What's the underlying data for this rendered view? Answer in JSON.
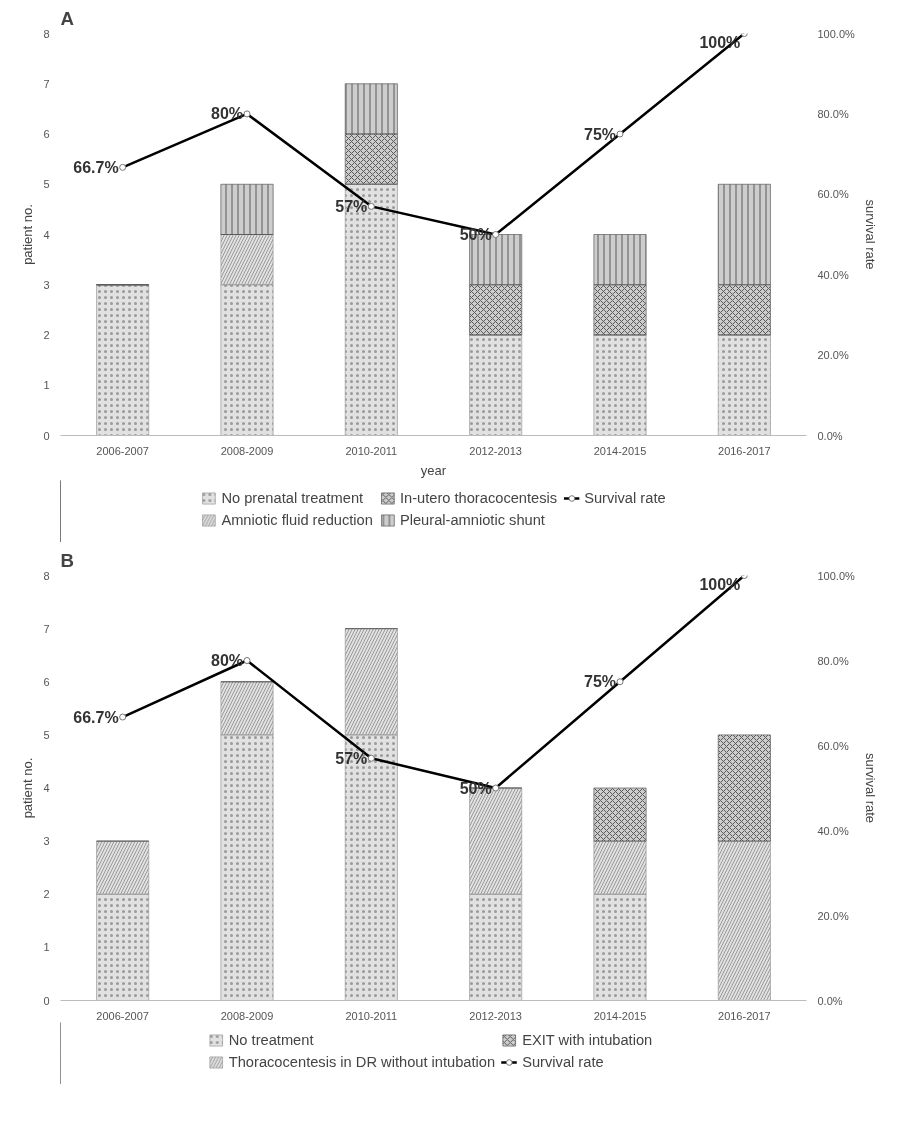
{
  "chart_data": [
    {
      "type": "bar",
      "title": "A",
      "xlabel": "year",
      "ylabel": "patient no.",
      "y2label": "survival rate",
      "stacked": true,
      "legend": "bottom",
      "marker": "circle",
      "grid": false,
      "categories": [
        "2006-2007",
        "2008-2009",
        "2010-2011",
        "2012-2013",
        "2014-2015",
        "2016-2017"
      ],
      "ylim": [
        0,
        8
      ],
      "yticks": [
        0,
        1,
        2,
        3,
        4,
        5,
        6,
        7,
        8
      ],
      "y2lim": [
        0,
        100
      ],
      "y2ticks": [
        {
          "value": 0,
          "label": "0.0%"
        },
        {
          "value": 20,
          "label": "20.0%"
        },
        {
          "value": 40,
          "label": "40.0%"
        },
        {
          "value": 60,
          "label": "60.0%"
        },
        {
          "value": 80,
          "label": "80.0%"
        },
        {
          "value": 100,
          "label": "100.0%"
        }
      ],
      "series": [
        {
          "name": "No prenatal treatment",
          "color": "#9a9a9a",
          "values": [
            3,
            3,
            5,
            2,
            2,
            2
          ]
        },
        {
          "name": "Amniotic fluid reduction",
          "color": "#9a9a9a",
          "values": [
            0,
            1,
            0,
            0,
            0,
            0
          ]
        },
        {
          "name": "In-utero thoracocentesis",
          "color": "#5a5a5a",
          "values": [
            0,
            0,
            1,
            1,
            1,
            1
          ]
        },
        {
          "name": "Pleural-amniotic shunt",
          "color": "#5a5a5a",
          "values": [
            0,
            1,
            1,
            1,
            1,
            2
          ]
        },
        {
          "name": "Survival rate",
          "type": "line",
          "axis": "y2",
          "color": "#000000",
          "values": [
            66.7,
            80,
            57,
            50,
            75,
            100
          ],
          "value_labels": [
            "66.7%",
            "80%",
            "57%",
            "50%",
            "75%",
            "100%"
          ]
        }
      ]
    },
    {
      "type": "bar",
      "title": "B",
      "ylabel": "patient no.",
      "y2label": "survival rate",
      "stacked": true,
      "legend": "bottom",
      "marker": "circle",
      "grid": false,
      "categories": [
        "2006-2007",
        "2008-2009",
        "2010-2011",
        "2012-2013",
        "2014-2015",
        "2016-2017"
      ],
      "ylim": [
        0,
        8
      ],
      "yticks": [
        0,
        1,
        2,
        3,
        4,
        5,
        6,
        7,
        8
      ],
      "y2lim": [
        0,
        100
      ],
      "y2ticks": [
        {
          "value": 0,
          "label": "0.0%"
        },
        {
          "value": 20,
          "label": "20.0%"
        },
        {
          "value": 40,
          "label": "40.0%"
        },
        {
          "value": 60,
          "label": "60.0%"
        },
        {
          "value": 80,
          "label": "80.0%"
        },
        {
          "value": 100,
          "label": "100.0%"
        }
      ],
      "series": [
        {
          "name": "No treatment",
          "color": "#9a9a9a",
          "values": [
            2,
            5,
            5,
            2,
            2,
            0
          ]
        },
        {
          "name": "Thoracocentesis in DR without intubation",
          "color": "#9a9a9a",
          "values": [
            1,
            1,
            2,
            2,
            1,
            3
          ]
        },
        {
          "name": "EXIT with intubation",
          "color": "#5a5a5a",
          "values": [
            0,
            0,
            0,
            0,
            1,
            2
          ]
        },
        {
          "name": "Survival rate",
          "type": "line",
          "axis": "y2",
          "color": "#000000",
          "values": [
            66.7,
            80,
            57,
            50,
            75,
            100
          ],
          "value_labels": [
            "66.7%",
            "80%",
            "57%",
            "50%",
            "75%",
            "100%"
          ]
        }
      ]
    }
  ]
}
